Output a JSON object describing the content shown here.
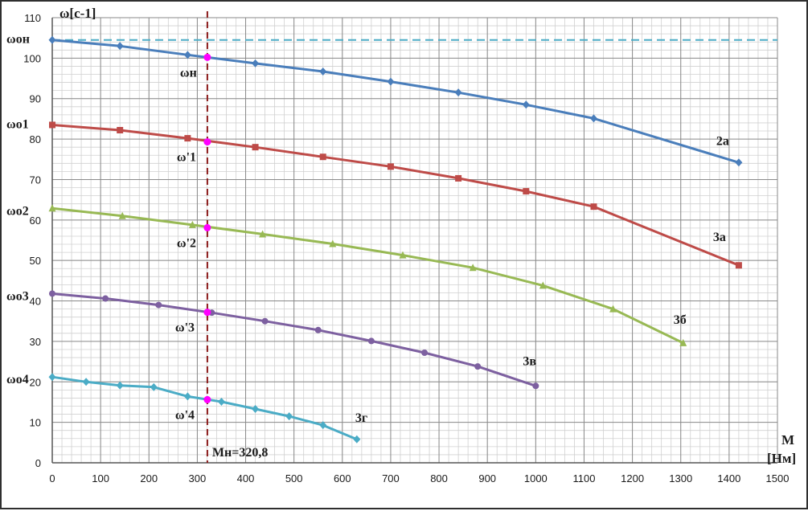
{
  "chart_data": {
    "type": "line",
    "ylabel": "ω[c-1]",
    "xlabel_line1": "M",
    "xlabel_line2": "[Нм]",
    "xlim": [
      0,
      1500
    ],
    "ylim": [
      0,
      110
    ],
    "x_ticks": [
      0,
      100,
      200,
      300,
      400,
      500,
      600,
      700,
      800,
      900,
      1000,
      1100,
      1200,
      1300,
      1400,
      1500
    ],
    "y_ticks": [
      0,
      10,
      20,
      30,
      40,
      50,
      60,
      70,
      80,
      90,
      100,
      110
    ],
    "grid": true,
    "minor_grid": {
      "x_step": 20,
      "y_step": 2
    },
    "reference_lines": [
      {
        "type": "horizontal",
        "y": 104.5,
        "color": "#4bacc6",
        "style": "dashed"
      },
      {
        "type": "vertical",
        "x": 320.8,
        "color": "#8b1a1a",
        "style": "dashed",
        "label": "Мн=320,8"
      }
    ],
    "y_annotations": [
      {
        "label": "ωон",
        "y": 104.5
      },
      {
        "label": "ωо1",
        "y": 83.5
      },
      {
        "label": "ωо2",
        "y": 62
      },
      {
        "label": "ωо3",
        "y": 41
      },
      {
        "label": "ωо4",
        "y": 20.5
      }
    ],
    "series": [
      {
        "name": "2а",
        "color": "#4a7ebb",
        "marker": "diamond",
        "x": [
          0,
          140,
          280,
          420,
          560,
          700,
          840,
          980,
          1120,
          1420
        ],
        "y": [
          104.5,
          103,
          100.8,
          98.7,
          96.7,
          94.2,
          91.5,
          88.5,
          85.1,
          74.2
        ]
      },
      {
        "name": "3а",
        "color": "#be4b48",
        "marker": "square",
        "x": [
          0,
          140,
          280,
          420,
          560,
          700,
          840,
          980,
          1120,
          1420
        ],
        "y": [
          83.5,
          82.2,
          80.2,
          78,
          75.6,
          73.2,
          70.3,
          67.1,
          63.3,
          48.8
        ]
      },
      {
        "name": "3б",
        "color": "#98b954",
        "marker": "triangle",
        "x": [
          0,
          145,
          290,
          435,
          580,
          725,
          870,
          1015,
          1160,
          1305
        ],
        "y": [
          62.9,
          61,
          58.8,
          56.5,
          54.1,
          51.3,
          48.2,
          43.8,
          38,
          29.6
        ]
      },
      {
        "name": "3в",
        "color": "#7d60a0",
        "marker": "circle",
        "x": [
          0,
          110,
          220,
          330,
          440,
          550,
          660,
          770,
          880,
          1000
        ],
        "y": [
          41.8,
          40.6,
          39,
          37.1,
          35,
          32.8,
          30.1,
          27.2,
          23.8,
          19
        ]
      },
      {
        "name": "3г",
        "color": "#4bacc6",
        "marker": "diamond",
        "x": [
          0,
          70,
          140,
          210,
          280,
          350,
          420,
          490,
          560,
          630
        ],
        "y": [
          21.2,
          20,
          19.1,
          18.7,
          16.4,
          15.1,
          13.3,
          11.5,
          9.3,
          5.8
        ]
      }
    ],
    "rated_points": {
      "x": 320.8,
      "color": "#ff00ff",
      "points": [
        {
          "label": "ωн",
          "y": 100.2
        },
        {
          "label": "ω'1",
          "y": 79.3
        },
        {
          "label": "ω'2",
          "y": 58.1
        },
        {
          "label": "ω'3",
          "y": 37.2
        },
        {
          "label": "ω'4",
          "y": 15.6
        }
      ]
    }
  }
}
